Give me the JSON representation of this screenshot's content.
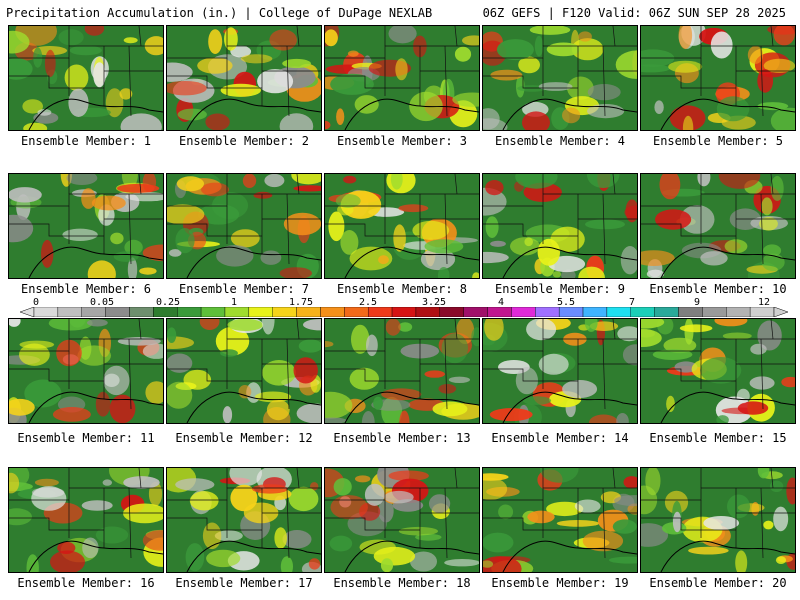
{
  "header": {
    "left": "Precipitation Accumulation (in.) | College of DuPage NEXLAB",
    "right": "06Z GEFS | F120 Valid: 06Z SUN SEP 28 2025"
  },
  "colorbar": {
    "ticks": [
      "0",
      "0.05",
      "0.25",
      "1",
      "1.75",
      "2.5",
      "3.25",
      "4",
      "5.5",
      "7",
      "9",
      "12"
    ],
    "colors": [
      "#d9d9d9",
      "#bfbfbf",
      "#a6a6a6",
      "#8c8c8c",
      "#6e8f6e",
      "#2f7d2f",
      "#3a9a3a",
      "#5fbf3a",
      "#9fdc2e",
      "#e8f21a",
      "#f6d31a",
      "#f7b21a",
      "#f5901a",
      "#f26a1a",
      "#ee3a1a",
      "#d61414",
      "#b01014",
      "#8a0a2a",
      "#a0106a",
      "#c0168f",
      "#df2ad8",
      "#a070ff",
      "#6a8cff",
      "#3fb4ff",
      "#1ee0f0",
      "#1ccfb8",
      "#2aa99a",
      "#7f7f7f",
      "#9a9a9a",
      "#b3b3b3",
      "#cfcfcf"
    ]
  },
  "members": [
    {
      "label": "Ensemble Member: 1"
    },
    {
      "label": "Ensemble Member: 2"
    },
    {
      "label": "Ensemble Member: 3"
    },
    {
      "label": "Ensemble Member: 4"
    },
    {
      "label": "Ensemble Member: 5"
    },
    {
      "label": "Ensemble Member: 6"
    },
    {
      "label": "Ensemble Member: 7"
    },
    {
      "label": "Ensemble Member: 8"
    },
    {
      "label": "Ensemble Member: 9"
    },
    {
      "label": "Ensemble Member: 10"
    },
    {
      "label": "Ensemble Member: 11"
    },
    {
      "label": "Ensemble Member: 12"
    },
    {
      "label": "Ensemble Member: 13"
    },
    {
      "label": "Ensemble Member: 14"
    },
    {
      "label": "Ensemble Member: 15"
    },
    {
      "label": "Ensemble Member: 16"
    },
    {
      "label": "Ensemble Member: 17"
    },
    {
      "label": "Ensemble Member: 18"
    },
    {
      "label": "Ensemble Member: 19"
    },
    {
      "label": "Ensemble Member: 20"
    }
  ]
}
